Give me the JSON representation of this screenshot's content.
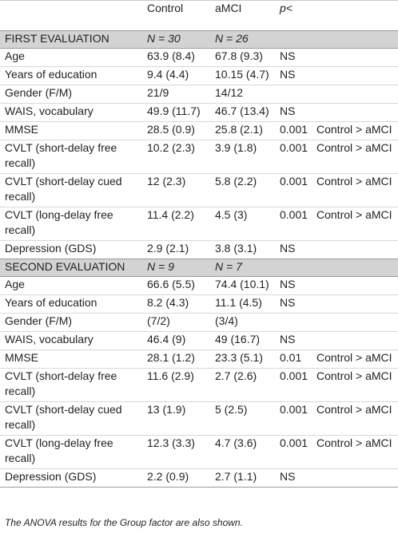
{
  "header": {
    "col1": "",
    "col2": "Control",
    "col3": "aMCI",
    "col4": "p<",
    "col5": ""
  },
  "sections": [
    {
      "title": "FIRST EVALUATION",
      "n_control": "N = 30",
      "n_amci": "N = 26",
      "rows": [
        {
          "label": "Age",
          "control": "63.9 (8.4)",
          "amci": "67.8 (9.3)",
          "p": "NS",
          "comparison": ""
        },
        {
          "label": "Years of education",
          "control": "9.4 (4.4)",
          "amci": "10.15 (4.7)",
          "p": "NS",
          "comparison": ""
        },
        {
          "label": "Gender (F/M)",
          "control": "21/9",
          "amci": "14/12",
          "p": "",
          "comparison": ""
        },
        {
          "label": "WAIS, vocabulary",
          "control": "49.9 (11.7)",
          "amci": "46.7 (13.4)",
          "p": "NS",
          "comparison": ""
        },
        {
          "label": "MMSE",
          "control": "28.5 (0.9)",
          "amci": "25.8 (2.1)",
          "p": "0.001",
          "comparison": "Control > aMCI"
        },
        {
          "label": "CVLT (short-delay free recall)",
          "control": "10.2 (2.3)",
          "amci": "3.9 (1.8)",
          "p": "0.001",
          "comparison": "Control > aMCI"
        },
        {
          "label": "CVLT (short-delay cued recall)",
          "control": "12 (2.3)",
          "amci": "5.8 (2.2)",
          "p": "0.001",
          "comparison": "Control > aMCI"
        },
        {
          "label": "CVLT (long-delay free recall)",
          "control": "11.4 (2.2)",
          "amci": "4.5 (3)",
          "p": "0.001",
          "comparison": "Control > aMCI"
        },
        {
          "label": "Depression (GDS)",
          "control": "2.9 (2.1)",
          "amci": "3.8 (3.1)",
          "p": "NS",
          "comparison": ""
        }
      ]
    },
    {
      "title": "SECOND EVALUATION",
      "n_control": "N = 9",
      "n_amci": "N = 7",
      "rows": [
        {
          "label": "Age",
          "control": "66.6 (5.5)",
          "amci": "74.4 (10.1)",
          "p": "NS",
          "comparison": ""
        },
        {
          "label": "Years of education",
          "control": "8.2 (4.3)",
          "amci": "11.1 (4.5)",
          "p": "NS",
          "comparison": ""
        },
        {
          "label": "Gender (F/M)",
          "control": "(7/2)",
          "amci": "(3/4)",
          "p": "",
          "comparison": ""
        },
        {
          "label": "WAIS, vocabulary",
          "control": "46.4 (9)",
          "amci": "49 (16.7)",
          "p": "NS",
          "comparison": ""
        },
        {
          "label": "MMSE",
          "control": "28.1 (1.2)",
          "amci": "23.3 (5.1)",
          "p": "0.01",
          "comparison": "Control > aMCI"
        },
        {
          "label": "CVLT (short-delay free recall)",
          "control": "11.6 (2.9)",
          "amci": "2.7 (2.6)",
          "p": "0.001",
          "comparison": "Control > aMCI"
        },
        {
          "label": "CVLT (short-delay cued recall)",
          "control": "13 (1.9)",
          "amci": "5 (2.5)",
          "p": "0.001",
          "comparison": "Control > aMCI"
        },
        {
          "label": "CVLT (long-delay free recall)",
          "control": "12.3 (3.3)",
          "amci": "4.7 (3.6)",
          "p": "0.001",
          "comparison": "Control > aMCI"
        },
        {
          "label": "Depression (GDS)",
          "control": "2.2 (0.9)",
          "amci": "2.7 (1.1)",
          "p": "NS",
          "comparison": ""
        }
      ]
    }
  ],
  "footnote": "The ANOVA results for the Group factor are also shown."
}
